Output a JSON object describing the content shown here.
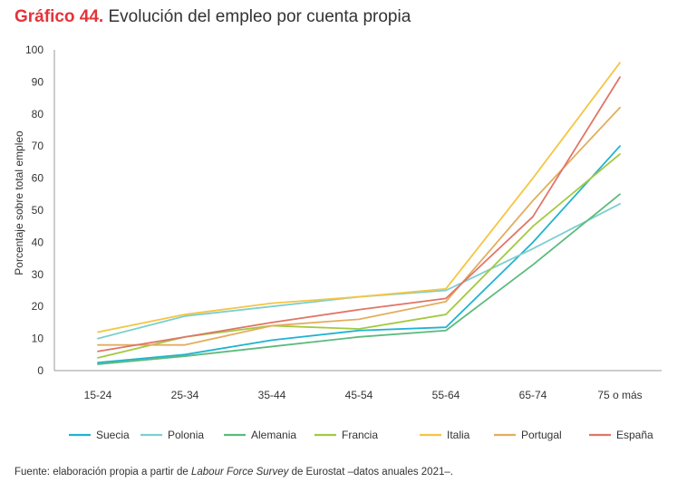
{
  "title": {
    "number": "Gráfico 44.",
    "text": "Evolución del empleo por cuenta propia"
  },
  "source": {
    "prefix": "Fuente: elaboración propia a partir de ",
    "italic": "Labour Force Survey",
    "suffix": " de Eurostat –datos anuales 2021–."
  },
  "chart_data": {
    "type": "line",
    "title": "Evolución del empleo por cuenta propia",
    "xlabel": "",
    "ylabel": "Porcentaje sobre total empleo",
    "ylim": [
      0,
      100
    ],
    "yticks": [
      0,
      10,
      20,
      30,
      40,
      50,
      60,
      70,
      80,
      90,
      100
    ],
    "ytick_labels": [
      "0",
      "10",
      "20",
      "30",
      "40",
      "50",
      "60",
      "70",
      "80",
      "90",
      "100"
    ],
    "grid": false,
    "legend_position": "bottom",
    "categories": [
      "15-24",
      "25-34",
      "35-44",
      "45-54",
      "55-64",
      "65-74",
      "75 o más"
    ],
    "series": [
      {
        "name": "Suecia",
        "color": "#1fb3d1",
        "values": [
          2.5,
          5,
          9.5,
          12.5,
          13.5,
          40,
          70
        ]
      },
      {
        "name": "Polonia",
        "color": "#7ccfd0",
        "values": [
          10,
          17,
          20,
          23,
          25,
          38,
          52
        ]
      },
      {
        "name": "Alemania",
        "color": "#5dba7d",
        "values": [
          2,
          4.5,
          7.5,
          10.5,
          12.5,
          33,
          55
        ]
      },
      {
        "name": "Francia",
        "color": "#a3c940",
        "values": [
          4,
          10.5,
          14,
          13,
          17.5,
          45,
          67.5
        ]
      },
      {
        "name": "Italia",
        "color": "#f5c542",
        "values": [
          12,
          17.5,
          21,
          23,
          25.5,
          60,
          96
        ]
      },
      {
        "name": "Portugal",
        "color": "#e3ad5e",
        "values": [
          8,
          8,
          14,
          16,
          21.5,
          53,
          82
        ]
      },
      {
        "name": "España",
        "color": "#e07567",
        "values": [
          6,
          10.5,
          15,
          19,
          22.5,
          48,
          91.5
        ]
      }
    ]
  }
}
